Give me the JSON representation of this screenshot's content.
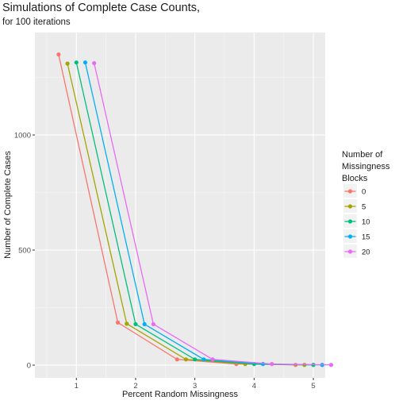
{
  "chart_data": {
    "type": "line",
    "title": "Simulations of Complete Case Counts,",
    "subtitle": "for 100 iterations",
    "xlabel": "Percent Random Missingness",
    "ylabel": "Number of Complete Cases",
    "xlim": [
      0.3,
      5.2
    ],
    "ylim": [
      -55,
      1445
    ],
    "x_ticks": [
      1,
      2,
      3,
      4,
      5
    ],
    "y_ticks": [
      0,
      500,
      1000
    ],
    "grid": true,
    "legend_title": "Number of\nMissingness\nBlocks",
    "legend_position": "right",
    "series": [
      {
        "name": "0",
        "color": "#F8766D",
        "x": [
          0.7,
          1.7,
          2.7,
          3.7,
          4.7
        ],
        "y": [
          1350,
          185,
          25,
          5,
          1
        ]
      },
      {
        "name": "5",
        "color": "#A3A500",
        "x": [
          0.85,
          1.85,
          2.85,
          3.85,
          4.85
        ],
        "y": [
          1310,
          180,
          25,
          5,
          1
        ]
      },
      {
        "name": "10",
        "color": "#00BF7D",
        "x": [
          1.0,
          2.0,
          3.0,
          4.0,
          5.0
        ],
        "y": [
          1315,
          178,
          25,
          5,
          1
        ]
      },
      {
        "name": "15",
        "color": "#00B0F6",
        "x": [
          1.15,
          2.15,
          3.15,
          4.15,
          5.15
        ],
        "y": [
          1315,
          178,
          25,
          5,
          1
        ]
      },
      {
        "name": "20",
        "color": "#E76BF3",
        "x": [
          1.3,
          2.3,
          3.3,
          4.3,
          5.3
        ],
        "y": [
          1312,
          178,
          25,
          5,
          1
        ]
      }
    ]
  }
}
